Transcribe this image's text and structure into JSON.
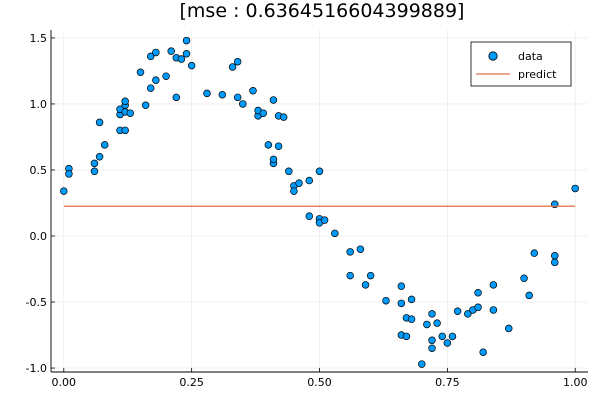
{
  "chart_data": {
    "type": "scatter",
    "title": "[mse : 0.6364516604399889]",
    "xlabel": "",
    "ylabel": "",
    "xlim": [
      -0.025,
      1.025
    ],
    "ylim": [
      -1.03,
      1.56
    ],
    "x_ticks": [
      0.0,
      0.25,
      0.5,
      0.75,
      1.0
    ],
    "x_tick_labels": [
      "0.00",
      "0.25",
      "0.50",
      "0.75",
      "1.00"
    ],
    "y_ticks": [
      -1.0,
      -0.5,
      0.0,
      0.5,
      1.0,
      1.5
    ],
    "y_tick_labels": [
      "-1.0",
      "-0.5",
      "0.0",
      "0.5",
      "1.0",
      "1.5"
    ],
    "grid": true,
    "legend_position": "top-right",
    "colors": {
      "data": "#009AFA",
      "predict": "#E26F46",
      "marker_edge": "#000000",
      "grid": "#e8e8e8",
      "axis": "#000000"
    },
    "series": [
      {
        "name": "data",
        "kind": "scatter",
        "points": [
          [
            0.0,
            0.34
          ],
          [
            0.01,
            0.51
          ],
          [
            0.01,
            0.47
          ],
          [
            0.06,
            0.49
          ],
          [
            0.06,
            0.55
          ],
          [
            0.07,
            0.6
          ],
          [
            0.07,
            0.86
          ],
          [
            0.08,
            0.69
          ],
          [
            0.11,
            0.92
          ],
          [
            0.11,
            0.8
          ],
          [
            0.11,
            0.96
          ],
          [
            0.12,
            0.99
          ],
          [
            0.12,
            1.02
          ],
          [
            0.12,
            0.94
          ],
          [
            0.12,
            0.8
          ],
          [
            0.13,
            0.93
          ],
          [
            0.15,
            1.24
          ],
          [
            0.16,
            0.99
          ],
          [
            0.17,
            1.12
          ],
          [
            0.17,
            1.36
          ],
          [
            0.18,
            1.39
          ],
          [
            0.18,
            1.18
          ],
          [
            0.2,
            1.21
          ],
          [
            0.21,
            1.4
          ],
          [
            0.22,
            1.35
          ],
          [
            0.22,
            1.05
          ],
          [
            0.23,
            1.34
          ],
          [
            0.24,
            1.48
          ],
          [
            0.24,
            1.38
          ],
          [
            0.25,
            1.29
          ],
          [
            0.28,
            1.08
          ],
          [
            0.31,
            1.07
          ],
          [
            0.33,
            1.28
          ],
          [
            0.34,
            1.32
          ],
          [
            0.34,
            1.05
          ],
          [
            0.35,
            1.0
          ],
          [
            0.37,
            1.1
          ],
          [
            0.38,
            0.91
          ],
          [
            0.38,
            0.95
          ],
          [
            0.39,
            0.93
          ],
          [
            0.4,
            0.69
          ],
          [
            0.41,
            0.55
          ],
          [
            0.41,
            0.58
          ],
          [
            0.41,
            1.03
          ],
          [
            0.42,
            0.68
          ],
          [
            0.42,
            0.91
          ],
          [
            0.43,
            0.9
          ],
          [
            0.44,
            0.49
          ],
          [
            0.45,
            0.38
          ],
          [
            0.45,
            0.34
          ],
          [
            0.46,
            0.4
          ],
          [
            0.48,
            0.42
          ],
          [
            0.48,
            0.15
          ],
          [
            0.5,
            0.13
          ],
          [
            0.5,
            0.1
          ],
          [
            0.51,
            0.12
          ],
          [
            0.5,
            0.49
          ],
          [
            0.53,
            0.02
          ],
          [
            0.56,
            -0.12
          ],
          [
            0.56,
            -0.3
          ],
          [
            0.58,
            -0.1
          ],
          [
            0.59,
            -0.37
          ],
          [
            0.6,
            -0.3
          ],
          [
            0.63,
            -0.49
          ],
          [
            0.66,
            -0.38
          ],
          [
            0.66,
            -0.51
          ],
          [
            0.66,
            -0.75
          ],
          [
            0.67,
            -0.62
          ],
          [
            0.67,
            -0.76
          ],
          [
            0.68,
            -0.63
          ],
          [
            0.68,
            -0.48
          ],
          [
            0.7,
            -0.97
          ],
          [
            0.71,
            -0.67
          ],
          [
            0.72,
            -0.59
          ],
          [
            0.72,
            -0.79
          ],
          [
            0.72,
            -0.85
          ],
          [
            0.73,
            -0.66
          ],
          [
            0.74,
            -0.76
          ],
          [
            0.75,
            -0.81
          ],
          [
            0.76,
            -0.76
          ],
          [
            0.77,
            -0.57
          ],
          [
            0.79,
            -0.59
          ],
          [
            0.8,
            -0.56
          ],
          [
            0.81,
            -0.54
          ],
          [
            0.81,
            -0.43
          ],
          [
            0.82,
            -0.88
          ],
          [
            0.84,
            -0.56
          ],
          [
            0.84,
            -0.37
          ],
          [
            0.87,
            -0.7
          ],
          [
            0.9,
            -0.32
          ],
          [
            0.91,
            -0.45
          ],
          [
            0.92,
            -0.13
          ],
          [
            0.96,
            0.24
          ],
          [
            0.96,
            -0.15
          ],
          [
            0.96,
            -0.2
          ],
          [
            1.0,
            0.36
          ]
        ]
      },
      {
        "name": "predict",
        "kind": "line",
        "points": [
          [
            0.0,
            0.225
          ],
          [
            1.0,
            0.225
          ]
        ]
      }
    ]
  }
}
